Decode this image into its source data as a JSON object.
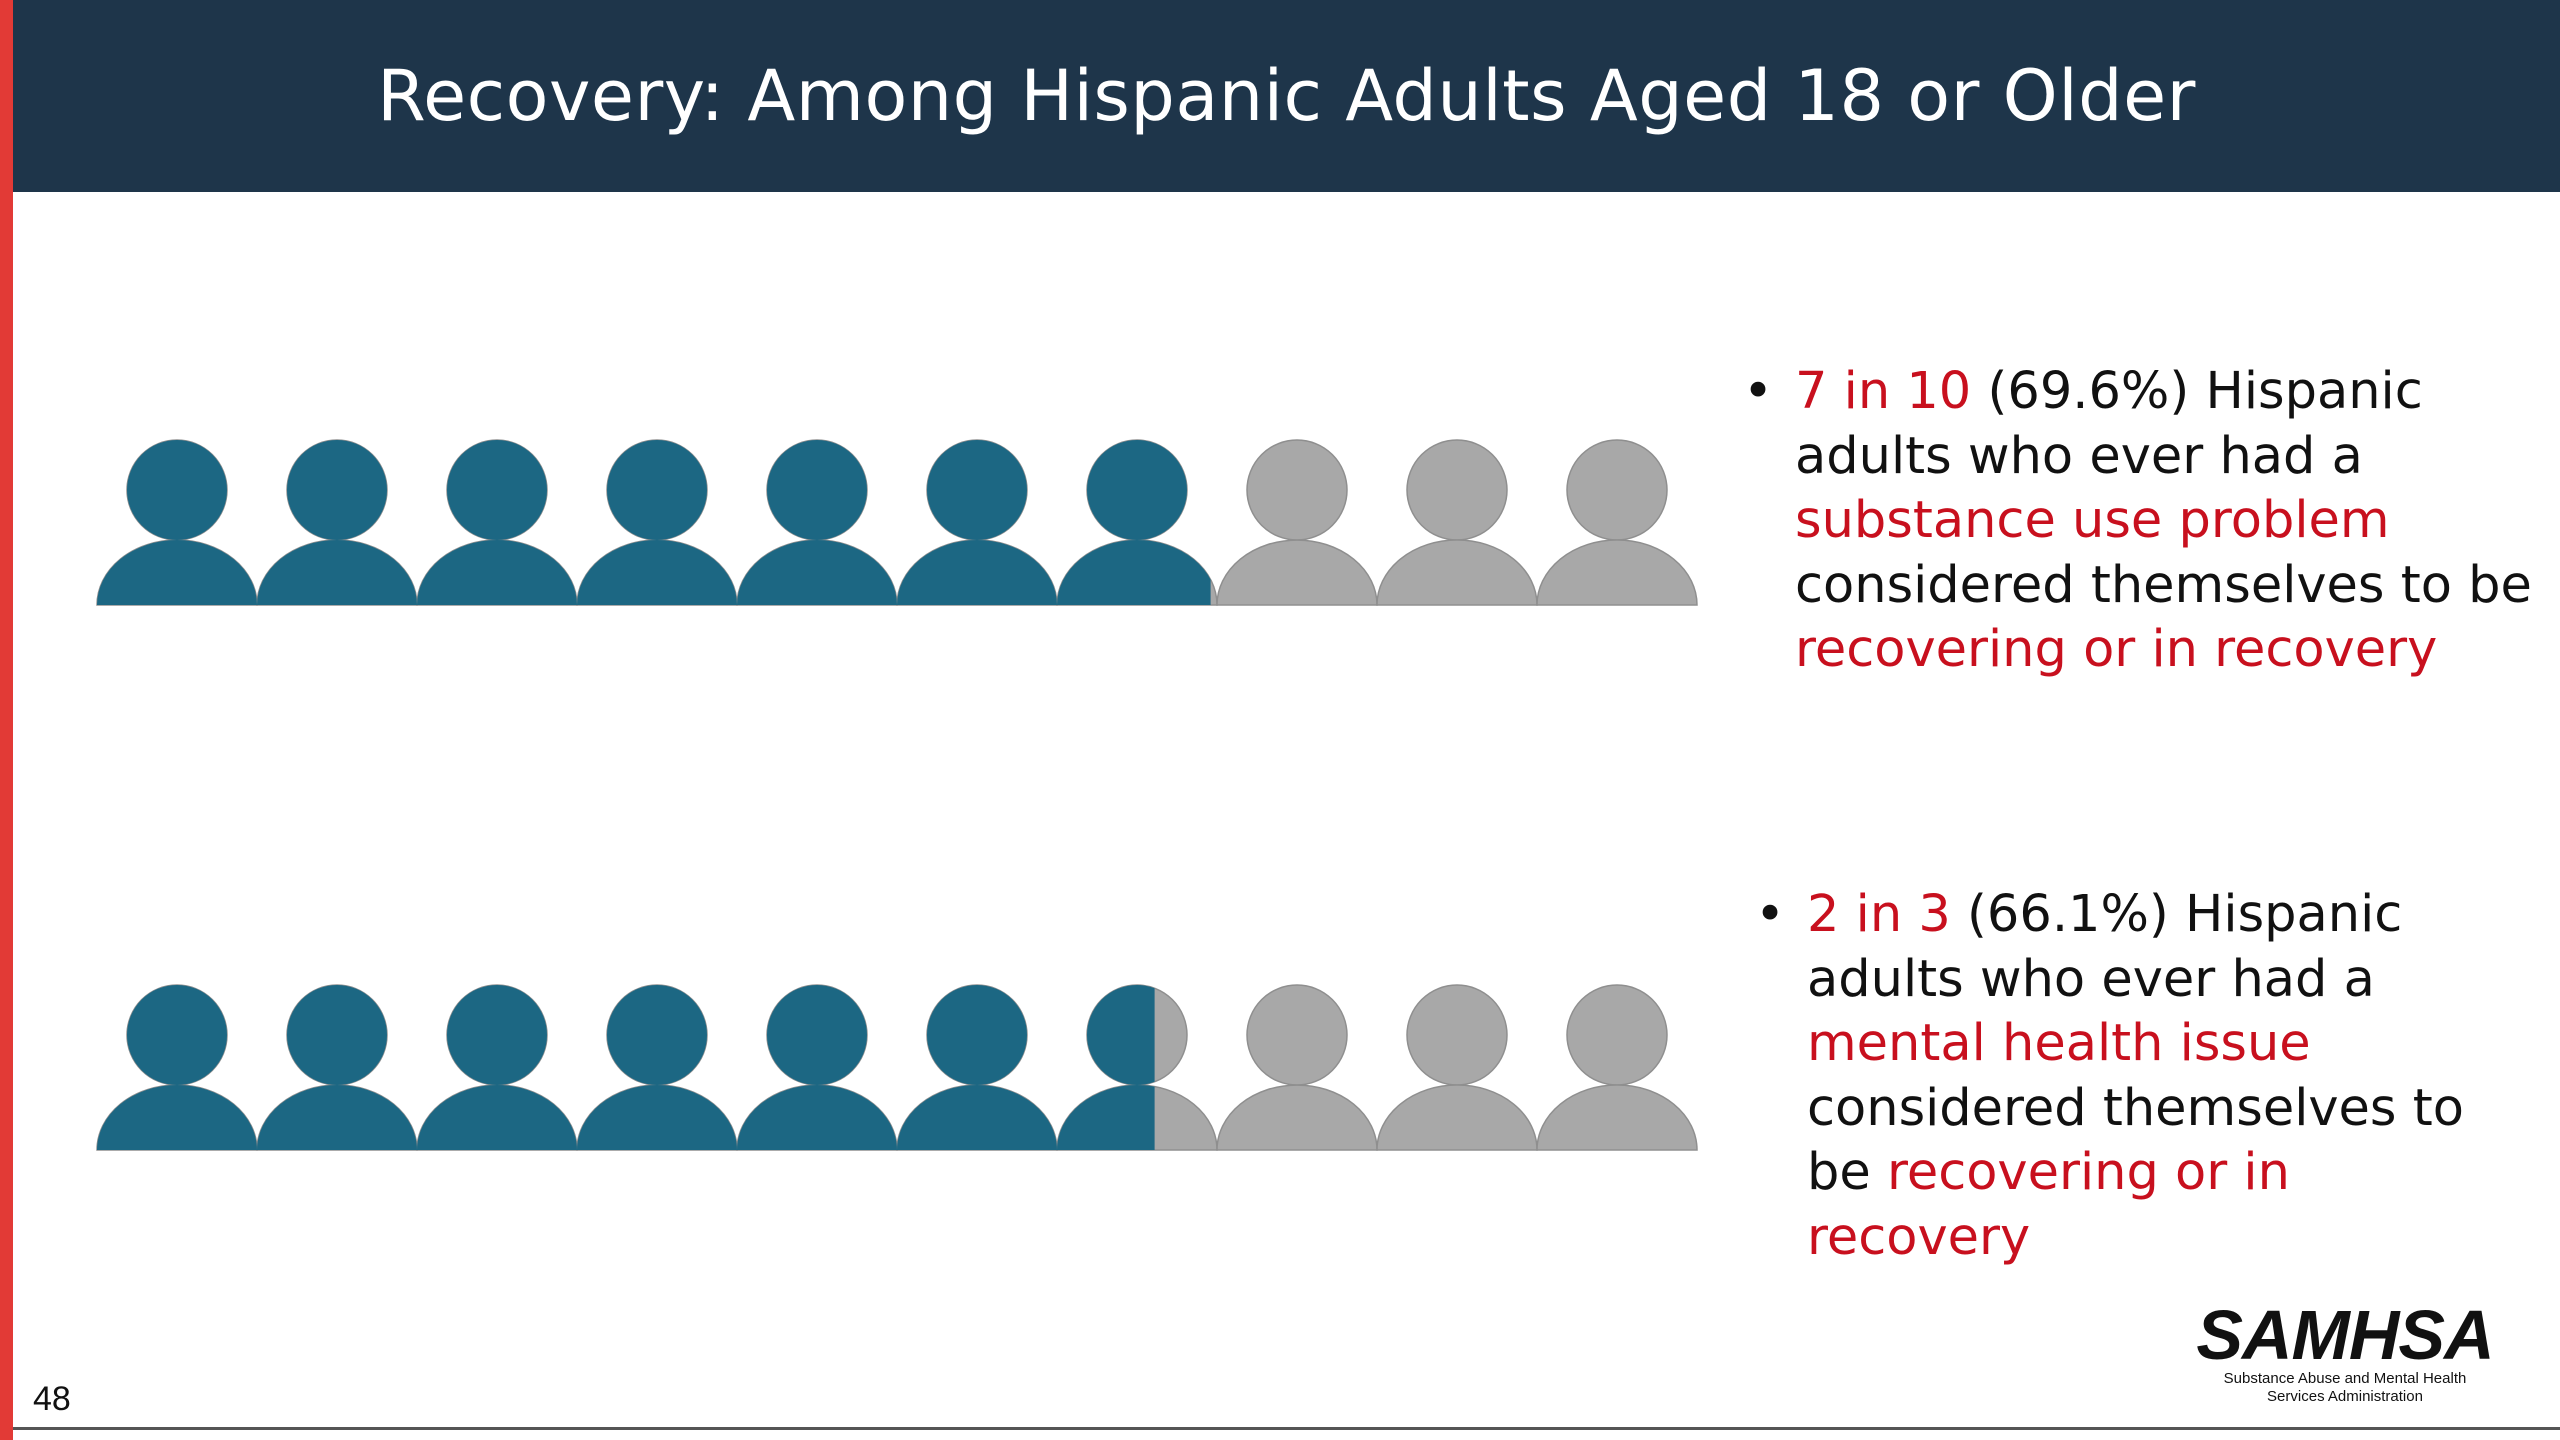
{
  "slide": {
    "title": "Recovery: Among Hispanic Adults Aged 18 or Older",
    "page_number": "48"
  },
  "colors": {
    "header_bg": "#1e354a",
    "accent_bar": "#e23a36",
    "filled_person": "#1c6783",
    "empty_person": "#a8a8a8",
    "highlight_text": "#c8101e"
  },
  "stats": [
    {
      "bullet": "•",
      "ratio": "7 in 10",
      "part2": " (69.6%) Hispanic adults who ever had a ",
      "highlight1": "substance use problem",
      "part3": " considered themselves to be ",
      "highlight2": "recovering or in recovery"
    },
    {
      "bullet": "•",
      "ratio": "2 in 3",
      "part2": " (66.1%) Hispanic adults who ever had a ",
      "highlight1": "mental health issue",
      "part3": " considered themselves to be ",
      "highlight2": "recovering or in recovery"
    }
  ],
  "logo": {
    "wordmark": "SAMHSA",
    "tagline_line1": "Substance Abuse and Mental Health",
    "tagline_line2": "Services Administration"
  },
  "chart_data": [
    {
      "type": "pictograph",
      "icon": "person-icon",
      "total_icons": 10,
      "filled_fraction": 0.696
    },
    {
      "type": "pictograph",
      "icon": "person-icon",
      "total_icons": 10,
      "filled_fraction": 0.661
    }
  ]
}
